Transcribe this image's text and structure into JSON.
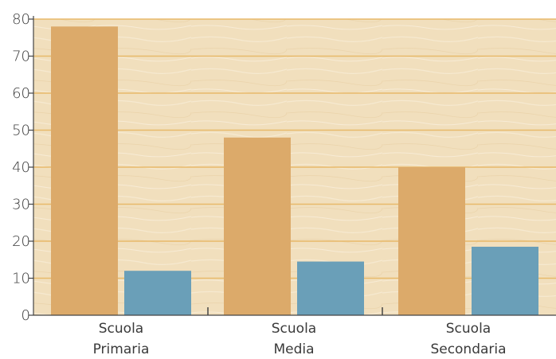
{
  "chart_data": {
    "type": "bar",
    "title": "",
    "xlabel": "",
    "ylabel": "",
    "ylim": [
      0,
      80
    ],
    "yticks": [
      0,
      10,
      20,
      30,
      40,
      50,
      60,
      70,
      80
    ],
    "grid": true,
    "categories": [
      [
        "Scuola",
        "Primaria"
      ],
      [
        "Scuola",
        "Media"
      ],
      [
        "Scuola",
        "Secondaria"
      ]
    ],
    "series": [
      {
        "values": [
          78,
          48,
          40
        ],
        "color": "#dcaa6a"
      },
      {
        "values": [
          12,
          14.5,
          18.5
        ],
        "color": "#6a9fb8"
      }
    ],
    "colors": {
      "background": "#f1dfbd",
      "gridline": "#e8b96a",
      "axis": "#444444"
    }
  }
}
